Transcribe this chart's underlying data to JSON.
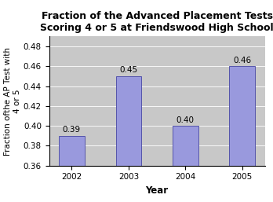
{
  "categories": [
    "2002",
    "2003",
    "2004",
    "2005"
  ],
  "values": [
    0.39,
    0.45,
    0.4,
    0.46
  ],
  "bar_color": "#9999dd",
  "bar_edgecolor": "#5555aa",
  "title_line1": "Fraction of the Advanced Placement Tests",
  "title_line2": "Scoring 4 or 5 at Friendswood High School",
  "xlabel": "Year",
  "ylabel": "Fraction ofthe AP Test with\n4 or 5",
  "ylim": [
    0.36,
    0.49
  ],
  "yticks": [
    0.36,
    0.38,
    0.4,
    0.42,
    0.44,
    0.46,
    0.48
  ],
  "plot_bg": "#c8c8c8",
  "fig_bg": "#ffffff",
  "title_fontsize": 9,
  "axis_label_fontsize": 8.5,
  "tick_fontsize": 7.5,
  "bar_label_fontsize": 7.5,
  "bar_width": 0.45
}
